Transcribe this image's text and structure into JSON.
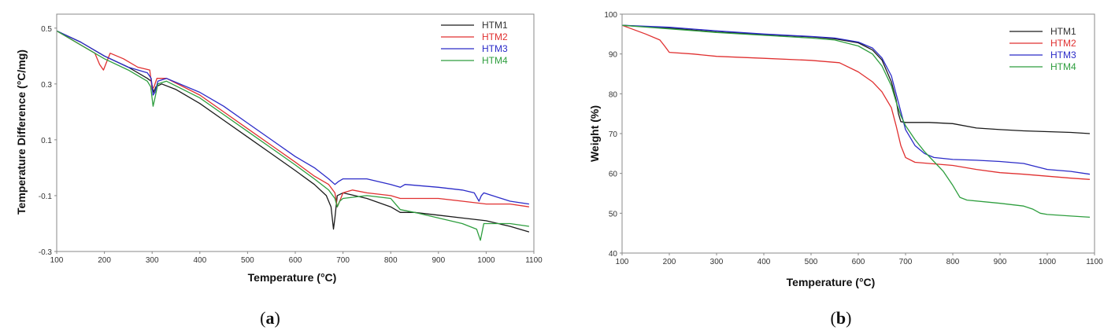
{
  "chart_data": [
    {
      "type": "line",
      "panel_label": "a",
      "xlabel": "Temperature (°C)",
      "ylabel": "Temperature Difference (°C/mg)",
      "xlim": [
        100,
        1100
      ],
      "ylim": [
        -0.3,
        0.55
      ],
      "xticks": [
        100,
        200,
        300,
        400,
        500,
        600,
        700,
        800,
        900,
        1000,
        1100
      ],
      "yticks": [
        -0.3,
        -0.1,
        0.1,
        0.3,
        0.5
      ],
      "ytick_labels": [
        "-0.3",
        "-0.1",
        "0.1",
        "0.3",
        "0.5"
      ],
      "grid": false,
      "legend_position": "top-right",
      "series": [
        {
          "name": "HTM1",
          "color": "#1a1a1a",
          "points": [
            [
              100,
              0.49
            ],
            [
              150,
              0.45
            ],
            [
              200,
              0.4
            ],
            [
              250,
              0.36
            ],
            [
              290,
              0.32
            ],
            [
              298,
              0.31
            ],
            [
              303,
              0.27
            ],
            [
              308,
              0.29
            ],
            [
              320,
              0.3
            ],
            [
              350,
              0.28
            ],
            [
              400,
              0.23
            ],
            [
              450,
              0.17
            ],
            [
              500,
              0.11
            ],
            [
              550,
              0.05
            ],
            [
              600,
              -0.01
            ],
            [
              640,
              -0.06
            ],
            [
              665,
              -0.1
            ],
            [
              675,
              -0.14
            ],
            [
              680,
              -0.22
            ],
            [
              683,
              -0.18
            ],
            [
              688,
              -0.1
            ],
            [
              700,
              -0.09
            ],
            [
              750,
              -0.11
            ],
            [
              800,
              -0.14
            ],
            [
              820,
              -0.16
            ],
            [
              830,
              -0.16
            ],
            [
              850,
              -0.16
            ],
            [
              900,
              -0.17
            ],
            [
              950,
              -0.18
            ],
            [
              1000,
              -0.19
            ],
            [
              1050,
              -0.21
            ],
            [
              1090,
              -0.23
            ]
          ]
        },
        {
          "name": "HTM2",
          "color": "#e03030",
          "points": [
            [
              100,
              0.49
            ],
            [
              150,
              0.44
            ],
            [
              180,
              0.41
            ],
            [
              190,
              0.37
            ],
            [
              198,
              0.35
            ],
            [
              205,
              0.38
            ],
            [
              212,
              0.41
            ],
            [
              240,
              0.39
            ],
            [
              270,
              0.36
            ],
            [
              295,
              0.35
            ],
            [
              300,
              0.28
            ],
            [
              304,
              0.29
            ],
            [
              310,
              0.32
            ],
            [
              330,
              0.32
            ],
            [
              400,
              0.26
            ],
            [
              450,
              0.2
            ],
            [
              500,
              0.14
            ],
            [
              550,
              0.08
            ],
            [
              600,
              0.02
            ],
            [
              640,
              -0.03
            ],
            [
              670,
              -0.06
            ],
            [
              683,
              -0.09
            ],
            [
              688,
              -0.14
            ],
            [
              693,
              -0.12
            ],
            [
              700,
              -0.09
            ],
            [
              720,
              -0.08
            ],
            [
              750,
              -0.09
            ],
            [
              800,
              -0.1
            ],
            [
              820,
              -0.11
            ],
            [
              850,
              -0.11
            ],
            [
              900,
              -0.11
            ],
            [
              950,
              -0.12
            ],
            [
              1000,
              -0.13
            ],
            [
              1050,
              -0.13
            ],
            [
              1090,
              -0.14
            ]
          ]
        },
        {
          "name": "HTM3",
          "color": "#2b2bc8",
          "points": [
            [
              100,
              0.49
            ],
            [
              150,
              0.45
            ],
            [
              200,
              0.4
            ],
            [
              250,
              0.36
            ],
            [
              290,
              0.34
            ],
            [
              298,
              0.32
            ],
            [
              302,
              0.26
            ],
            [
              306,
              0.27
            ],
            [
              312,
              0.31
            ],
            [
              330,
              0.32
            ],
            [
              400,
              0.27
            ],
            [
              450,
              0.22
            ],
            [
              500,
              0.16
            ],
            [
              550,
              0.1
            ],
            [
              600,
              0.04
            ],
            [
              640,
              0.0
            ],
            [
              670,
              -0.04
            ],
            [
              683,
              -0.06
            ],
            [
              690,
              -0.05
            ],
            [
              700,
              -0.04
            ],
            [
              750,
              -0.04
            ],
            [
              800,
              -0.06
            ],
            [
              820,
              -0.07
            ],
            [
              830,
              -0.06
            ],
            [
              900,
              -0.07
            ],
            [
              950,
              -0.08
            ],
            [
              975,
              -0.09
            ],
            [
              985,
              -0.12
            ],
            [
              990,
              -0.1
            ],
            [
              995,
              -0.09
            ],
            [
              1050,
              -0.12
            ],
            [
              1090,
              -0.13
            ]
          ]
        },
        {
          "name": "HTM4",
          "color": "#2e9e3e",
          "points": [
            [
              100,
              0.49
            ],
            [
              150,
              0.44
            ],
            [
              200,
              0.39
            ],
            [
              250,
              0.35
            ],
            [
              290,
              0.31
            ],
            [
              297,
              0.29
            ],
            [
              302,
              0.22
            ],
            [
              306,
              0.25
            ],
            [
              312,
              0.3
            ],
            [
              330,
              0.31
            ],
            [
              400,
              0.25
            ],
            [
              450,
              0.19
            ],
            [
              500,
              0.13
            ],
            [
              550,
              0.07
            ],
            [
              600,
              0.01
            ],
            [
              640,
              -0.04
            ],
            [
              670,
              -0.08
            ],
            [
              683,
              -0.11
            ],
            [
              688,
              -0.14
            ],
            [
              693,
              -0.12
            ],
            [
              700,
              -0.11
            ],
            [
              750,
              -0.1
            ],
            [
              800,
              -0.11
            ],
            [
              820,
              -0.15
            ],
            [
              850,
              -0.16
            ],
            [
              900,
              -0.18
            ],
            [
              950,
              -0.2
            ],
            [
              980,
              -0.22
            ],
            [
              988,
              -0.26
            ],
            [
              995,
              -0.2
            ],
            [
              1050,
              -0.2
            ],
            [
              1090,
              -0.21
            ]
          ]
        }
      ]
    },
    {
      "type": "line",
      "panel_label": "b",
      "xlabel": "Temperature (°C)",
      "ylabel": "Weight (%)",
      "xlim": [
        100,
        1100
      ],
      "ylim": [
        40,
        100
      ],
      "xticks": [
        100,
        200,
        300,
        400,
        500,
        600,
        700,
        800,
        900,
        1000,
        1100
      ],
      "yticks": [
        40,
        50,
        60,
        70,
        80,
        90,
        100
      ],
      "ytick_labels": [
        "40",
        "50",
        "60",
        "70",
        "80",
        "90",
        "100"
      ],
      "grid": false,
      "legend_position": "top-right",
      "series": [
        {
          "name": "HTM1",
          "color": "#1a1a1a",
          "points": [
            [
              100,
              97.2
            ],
            [
              200,
              96.5
            ],
            [
              300,
              95.5
            ],
            [
              400,
              94.9
            ],
            [
              500,
              94.3
            ],
            [
              550,
              93.8
            ],
            [
              600,
              92.8
            ],
            [
              630,
              91.0
            ],
            [
              650,
              88.5
            ],
            [
              670,
              83.0
            ],
            [
              680,
              78.5
            ],
            [
              685,
              75.0
            ],
            [
              690,
              73.0
            ],
            [
              700,
              72.8
            ],
            [
              750,
              72.8
            ],
            [
              800,
              72.5
            ],
            [
              850,
              71.4
            ],
            [
              900,
              71.0
            ],
            [
              950,
              70.7
            ],
            [
              1000,
              70.5
            ],
            [
              1050,
              70.3
            ],
            [
              1090,
              70.0
            ]
          ]
        },
        {
          "name": "HTM2",
          "color": "#e03030",
          "points": [
            [
              100,
              97.2
            ],
            [
              150,
              95.0
            ],
            [
              180,
              93.5
            ],
            [
              190,
              92.0
            ],
            [
              200,
              90.4
            ],
            [
              250,
              90.0
            ],
            [
              300,
              89.4
            ],
            [
              400,
              88.9
            ],
            [
              500,
              88.4
            ],
            [
              560,
              87.8
            ],
            [
              600,
              85.5
            ],
            [
              630,
              83.0
            ],
            [
              650,
              80.5
            ],
            [
              670,
              76.5
            ],
            [
              680,
              72.0
            ],
            [
              690,
              67.0
            ],
            [
              700,
              64.0
            ],
            [
              720,
              62.8
            ],
            [
              750,
              62.5
            ],
            [
              800,
              62.0
            ],
            [
              850,
              61.0
            ],
            [
              900,
              60.2
            ],
            [
              950,
              59.8
            ],
            [
              1000,
              59.3
            ],
            [
              1050,
              58.8
            ],
            [
              1090,
              58.5
            ]
          ]
        },
        {
          "name": "HTM3",
          "color": "#2b2bc8",
          "points": [
            [
              100,
              97.2
            ],
            [
              200,
              96.7
            ],
            [
              300,
              95.8
            ],
            [
              400,
              95.0
            ],
            [
              500,
              94.4
            ],
            [
              550,
              94.0
            ],
            [
              600,
              93.0
            ],
            [
              630,
              91.5
            ],
            [
              650,
              89.0
            ],
            [
              670,
              84.5
            ],
            [
              680,
              80.0
            ],
            [
              690,
              75.5
            ],
            [
              700,
              71.0
            ],
            [
              720,
              67.0
            ],
            [
              740,
              65.0
            ],
            [
              760,
              64.0
            ],
            [
              800,
              63.5
            ],
            [
              850,
              63.3
            ],
            [
              900,
              63.0
            ],
            [
              950,
              62.5
            ],
            [
              1000,
              61.0
            ],
            [
              1050,
              60.5
            ],
            [
              1090,
              59.8
            ]
          ]
        },
        {
          "name": "HTM4",
          "color": "#2e9e3e",
          "points": [
            [
              100,
              97.2
            ],
            [
              200,
              96.3
            ],
            [
              300,
              95.4
            ],
            [
              400,
              94.7
            ],
            [
              500,
              94.0
            ],
            [
              550,
              93.5
            ],
            [
              600,
              92.0
            ],
            [
              630,
              90.0
            ],
            [
              650,
              87.0
            ],
            [
              670,
              82.0
            ],
            [
              680,
              78.0
            ],
            [
              690,
              74.5
            ],
            [
              700,
              72.0
            ],
            [
              720,
              68.5
            ],
            [
              740,
              65.5
            ],
            [
              760,
              63.0
            ],
            [
              780,
              60.5
            ],
            [
              800,
              57.0
            ],
            [
              815,
              54.0
            ],
            [
              830,
              53.3
            ],
            [
              900,
              52.5
            ],
            [
              950,
              51.8
            ],
            [
              970,
              51.0
            ],
            [
              985,
              50.0
            ],
            [
              1000,
              49.7
            ],
            [
              1050,
              49.3
            ],
            [
              1090,
              49.0
            ]
          ]
        }
      ]
    }
  ],
  "captions": [
    "(a)",
    "(b)"
  ]
}
